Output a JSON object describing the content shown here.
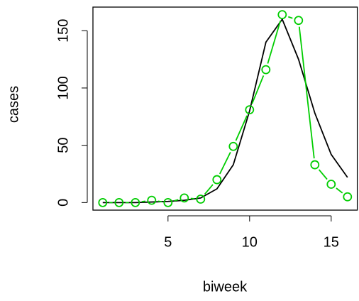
{
  "chart_data": {
    "type": "line",
    "x_label": "biweek",
    "y_label": "cases",
    "x": [
      1,
      2,
      3,
      4,
      5,
      6,
      7,
      8,
      9,
      10,
      11,
      12,
      13,
      14,
      15,
      16
    ],
    "series": [
      {
        "color": "#000000",
        "style": "line",
        "values": [
          0,
          0,
          0,
          0.5,
          1,
          2,
          4,
          12,
          33,
          80,
          140,
          160,
          125,
          78,
          42,
          22
        ]
      },
      {
        "color": "#00cd00",
        "style": "both",
        "values": [
          0,
          0,
          0,
          2,
          0,
          4,
          3,
          20,
          49,
          81,
          116,
          164,
          159,
          33,
          16,
          5
        ]
      }
    ],
    "xlim": [
      0.4,
      16.6
    ],
    "ylim": [
      -6.6,
      170.6
    ],
    "xticks": [
      5,
      10,
      15
    ],
    "yticks": [
      0,
      50,
      100,
      150
    ]
  }
}
